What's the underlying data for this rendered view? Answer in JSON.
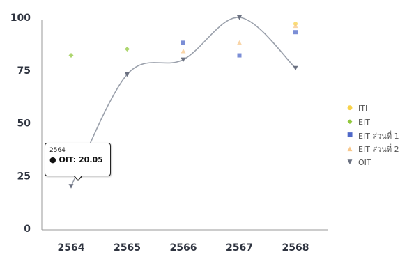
{
  "chart_data": {
    "type": "line",
    "title": "",
    "xlabel": "",
    "ylabel": "",
    "categories": [
      "2564",
      "2565",
      "2566",
      "2567",
      "2568"
    ],
    "yticks": [
      "0",
      "25",
      "50",
      "75",
      "100"
    ],
    "ylim": [
      0,
      100
    ],
    "grid": false,
    "legend_position": "right",
    "series": [
      {
        "name": "ITI",
        "color": "#f8d24a",
        "style": "points",
        "marker": "circle",
        "values": [
          null,
          null,
          null,
          null,
          97
        ]
      },
      {
        "name": "EIT",
        "color": "#92c83e",
        "style": "points",
        "marker": "diamond",
        "values": [
          82,
          85,
          null,
          null,
          null
        ]
      },
      {
        "name": "EIT ส่วนที่ 1",
        "color": "#4f68c8",
        "style": "points",
        "marker": "square",
        "values": [
          null,
          null,
          88,
          82,
          93
        ]
      },
      {
        "name": "EIT ส่วนที่ 2",
        "color": "#f7c78b",
        "style": "points",
        "marker": "triangle",
        "values": [
          null,
          null,
          84,
          88,
          96
        ]
      },
      {
        "name": "OIT",
        "color": "#6b7181",
        "style": "line",
        "marker": "triangle-down",
        "values": [
          20.05,
          73,
          80,
          100,
          76
        ]
      }
    ]
  },
  "tooltip": {
    "title": "2564",
    "series_name": "OIT",
    "value": "20.05",
    "text": "OIT: 20.05"
  }
}
